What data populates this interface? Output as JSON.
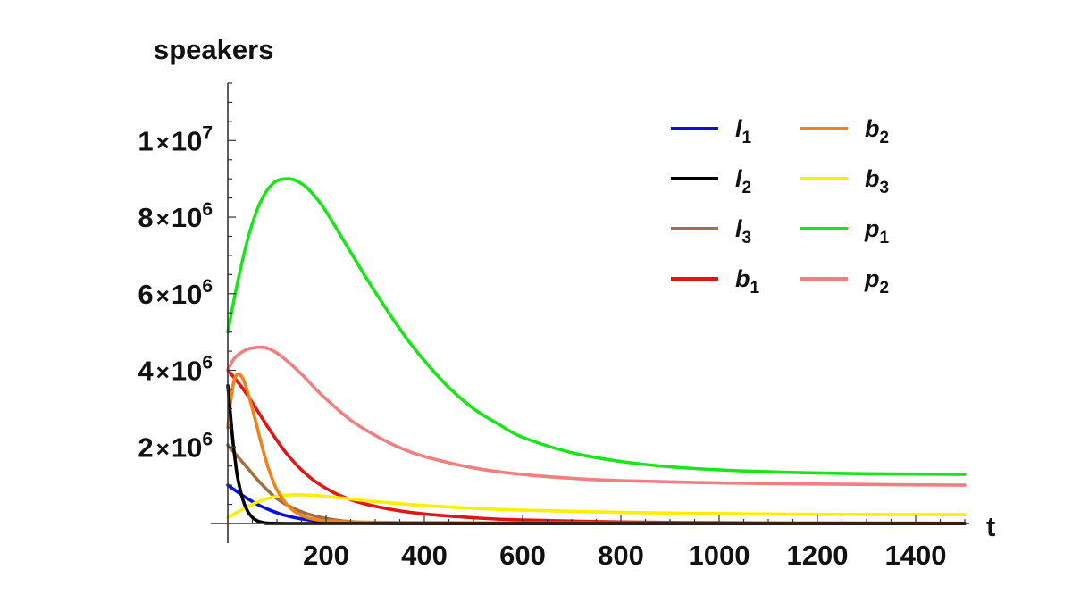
{
  "chart_data": {
    "type": "line",
    "ylabel": "speakers",
    "xlabel": "t",
    "xlim": [
      0,
      1500
    ],
    "ylim": [
      0,
      11500000
    ],
    "x_ticks": [
      {
        "value": 200,
        "label": "200"
      },
      {
        "value": 400,
        "label": "400"
      },
      {
        "value": 600,
        "label": "600"
      },
      {
        "value": 800,
        "label": "800"
      },
      {
        "value": 1000,
        "label": "1000"
      },
      {
        "value": 1200,
        "label": "1200"
      },
      {
        "value": 1400,
        "label": "1400"
      }
    ],
    "y_ticks": [
      {
        "value": 2000000,
        "mant": "2",
        "exp": "6"
      },
      {
        "value": 4000000,
        "mant": "4",
        "exp": "6"
      },
      {
        "value": 6000000,
        "mant": "6",
        "exp": "6"
      },
      {
        "value": 8000000,
        "mant": "8",
        "exp": "6"
      },
      {
        "value": 10000000,
        "mant": "1",
        "exp": "7"
      }
    ],
    "grid": false,
    "legend_position": "top-right",
    "series": [
      {
        "name": "l",
        "sub": "1",
        "color": "#0a12d9",
        "x": [
          0,
          20,
          40,
          60,
          80,
          100,
          120,
          150,
          180,
          220,
          260,
          300,
          400,
          600,
          1500
        ],
        "y": [
          1000000,
          820000,
          650000,
          500000,
          380000,
          280000,
          200000,
          120000,
          70000,
          30000,
          12000,
          5000,
          0,
          0,
          0
        ]
      },
      {
        "name": "l",
        "sub": "2",
        "color": "#000000",
        "x": [
          0,
          5,
          10,
          15,
          20,
          30,
          40,
          50,
          60,
          70,
          80,
          100,
          120,
          200,
          1500
        ],
        "y": [
          3600000,
          2900000,
          2200000,
          1650000,
          1200000,
          650000,
          330000,
          160000,
          70000,
          30000,
          12000,
          3000,
          0,
          0,
          0
        ]
      },
      {
        "name": "l",
        "sub": "3",
        "color": "#a0703f",
        "x": [
          0,
          20,
          40,
          60,
          80,
          100,
          130,
          160,
          200,
          240,
          280,
          330,
          400,
          600,
          1500
        ],
        "y": [
          2050000,
          1750000,
          1450000,
          1150000,
          880000,
          650000,
          420000,
          260000,
          130000,
          60000,
          25000,
          8000,
          0,
          0,
          0
        ]
      },
      {
        "name": "b",
        "sub": "1",
        "color": "#e31414",
        "x": [
          0,
          20,
          40,
          60,
          80,
          100,
          120,
          150,
          180,
          220,
          260,
          300,
          350,
          400,
          500,
          600,
          800,
          1000,
          1200,
          1500
        ],
        "y": [
          4000000,
          3700000,
          3350000,
          2950000,
          2550000,
          2170000,
          1820000,
          1400000,
          1080000,
          780000,
          580000,
          450000,
          330000,
          250000,
          150000,
          90000,
          40000,
          20000,
          10000,
          5000
        ]
      },
      {
        "name": "b",
        "sub": "2",
        "color": "#f0821a",
        "x": [
          0,
          5,
          10,
          15,
          20,
          25,
          30,
          35,
          40,
          50,
          60,
          70,
          80,
          90,
          100,
          120,
          140,
          160,
          180,
          200,
          240,
          280,
          350,
          450,
          600,
          800,
          1000,
          1200,
          1500
        ],
        "y": [
          2500000,
          3100000,
          3550000,
          3820000,
          3900000,
          3880000,
          3800000,
          3650000,
          3450000,
          3000000,
          2500000,
          2000000,
          1550000,
          1180000,
          880000,
          500000,
          280000,
          160000,
          100000,
          70000,
          45000,
          35000,
          25000,
          20000,
          15000,
          12000,
          10000,
          9000,
          8000
        ]
      },
      {
        "name": "b",
        "sub": "3",
        "color": "#ffee00",
        "x": [
          0,
          20,
          40,
          60,
          80,
          100,
          120,
          140,
          160,
          180,
          200,
          250,
          300,
          400,
          500,
          600,
          800,
          1000,
          1200,
          1500
        ],
        "y": [
          150000,
          300000,
          440000,
          560000,
          650000,
          710000,
          740000,
          750000,
          745000,
          730000,
          705000,
          640000,
          570000,
          470000,
          400000,
          350000,
          290000,
          260000,
          240000,
          230000
        ]
      },
      {
        "name": "p",
        "sub": "1",
        "color": "#19e619",
        "x": [
          0,
          20,
          40,
          60,
          80,
          100,
          120,
          130,
          140,
          160,
          180,
          200,
          240,
          280,
          320,
          360,
          400,
          450,
          500,
          550,
          600,
          700,
          800,
          900,
          1000,
          1100,
          1200,
          1300,
          1400,
          1500
        ],
        "y": [
          5000000,
          6300000,
          7400000,
          8200000,
          8700000,
          8950000,
          9000000,
          8990000,
          8950000,
          8780000,
          8500000,
          8150000,
          7300000,
          6450000,
          5650000,
          4900000,
          4250000,
          3550000,
          3000000,
          2600000,
          2250000,
          1850000,
          1620000,
          1480000,
          1400000,
          1350000,
          1320000,
          1300000,
          1290000,
          1280000
        ]
      },
      {
        "name": "p",
        "sub": "2",
        "color": "#f08080",
        "x": [
          0,
          10,
          20,
          40,
          60,
          70,
          80,
          100,
          120,
          150,
          180,
          200,
          250,
          300,
          350,
          400,
          500,
          600,
          700,
          800,
          1000,
          1200,
          1500
        ],
        "y": [
          4000000,
          4250000,
          4400000,
          4550000,
          4600000,
          4600000,
          4580000,
          4450000,
          4250000,
          3900000,
          3500000,
          3250000,
          2700000,
          2300000,
          1980000,
          1750000,
          1450000,
          1280000,
          1180000,
          1120000,
          1060000,
          1030000,
          1000000
        ]
      }
    ]
  }
}
